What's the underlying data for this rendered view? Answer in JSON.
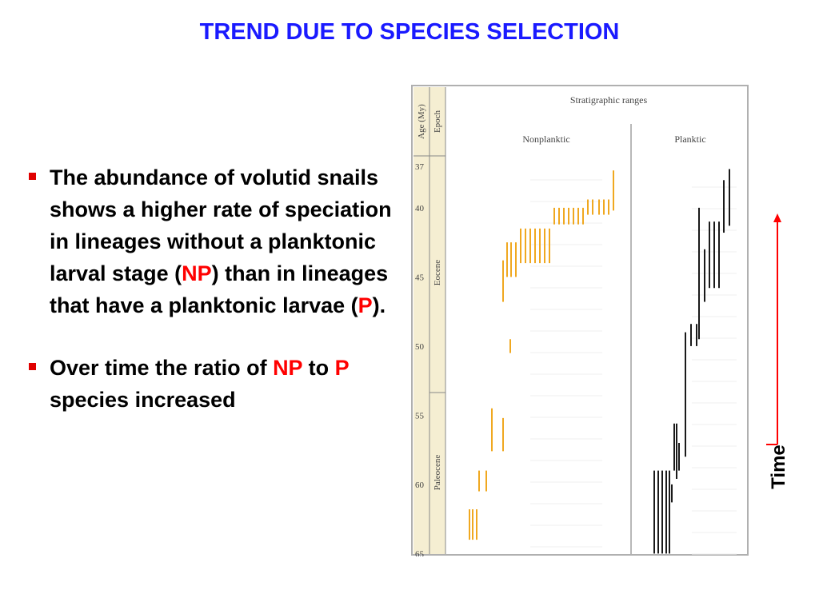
{
  "slide": {
    "title": "TREND DUE TO SPECIES SELECTION",
    "bullets": [
      {
        "pre": "The abundance of volutid snails shows a higher rate of speciation in lineages without a planktonic larval stage (",
        "em": "NP",
        "mid": ") than in lineages that have a planktonic larvae (",
        "em2": "P",
        "post": ")."
      },
      {
        "pre": "Over time the ratio of ",
        "em": "NP",
        "mid": " to ",
        "em2": "P",
        "post": " species increased"
      }
    ],
    "time_label": "Time"
  },
  "figure": {
    "header": "Stratigraphic ranges",
    "col_age": "Age (My)",
    "col_epoch": "Epoch",
    "group_np": "Nonplanktic",
    "group_p": "Planktic",
    "epochs": [
      "Eocene",
      "Paleocene"
    ],
    "age_ticks": [
      "37",
      "40",
      "45",
      "50",
      "55",
      "60",
      "65"
    ],
    "colors": {
      "nonplanktic": "#f0a820",
      "planktic": "#1a1a1a",
      "accent": "#ff0000",
      "title": "#1a1aff"
    }
  },
  "chart_data": {
    "type": "range",
    "y_axis": {
      "label": "Age (My)",
      "ticks": [
        37,
        40,
        45,
        50,
        55,
        60,
        65
      ]
    },
    "series": [
      {
        "name": "Nonplanktic",
        "ranges": [
          [
            61.8,
            64.0
          ],
          [
            61.8,
            64.0
          ],
          [
            61.8,
            64.0
          ],
          [
            59.0,
            60.5
          ],
          [
            59.0,
            60.5
          ],
          [
            54.5,
            57.6
          ],
          [
            55.2,
            57.6
          ],
          [
            43.8,
            46.8
          ],
          [
            49.5,
            50.5
          ],
          [
            42.5,
            45.0
          ],
          [
            42.5,
            45.0
          ],
          [
            42.5,
            45.0
          ],
          [
            41.5,
            44.0
          ],
          [
            41.5,
            44.0
          ],
          [
            41.5,
            44.0
          ],
          [
            41.5,
            44.0
          ],
          [
            41.5,
            44.0
          ],
          [
            41.5,
            44.0
          ],
          [
            41.5,
            44.0
          ],
          [
            40.0,
            41.2
          ],
          [
            40.0,
            41.2
          ],
          [
            40.0,
            41.2
          ],
          [
            40.0,
            41.2
          ],
          [
            40.0,
            41.2
          ],
          [
            40.0,
            41.2
          ],
          [
            40.0,
            41.2
          ],
          [
            39.4,
            40.5
          ],
          [
            39.4,
            40.5
          ],
          [
            39.4,
            40.5
          ],
          [
            39.4,
            40.5
          ],
          [
            39.4,
            40.5
          ],
          [
            37.3,
            40.2
          ]
        ]
      },
      {
        "name": "Planktic",
        "ranges": [
          [
            59.0,
            65.0
          ],
          [
            59.0,
            65.0
          ],
          [
            59.0,
            65.0
          ],
          [
            59.0,
            65.0
          ],
          [
            59.0,
            65.0
          ],
          [
            60.0,
            61.3
          ],
          [
            55.6,
            59.0
          ],
          [
            57.0,
            59.0
          ],
          [
            55.6,
            59.6
          ],
          [
            49.0,
            58.0
          ],
          [
            48.4,
            50.0
          ],
          [
            48.4,
            50.0
          ],
          [
            40.0,
            49.5
          ],
          [
            43.0,
            46.8
          ],
          [
            41.0,
            45.8
          ],
          [
            41.0,
            45.8
          ],
          [
            41.0,
            45.8
          ],
          [
            38.0,
            41.8
          ],
          [
            37.2,
            41.3
          ]
        ]
      }
    ]
  }
}
